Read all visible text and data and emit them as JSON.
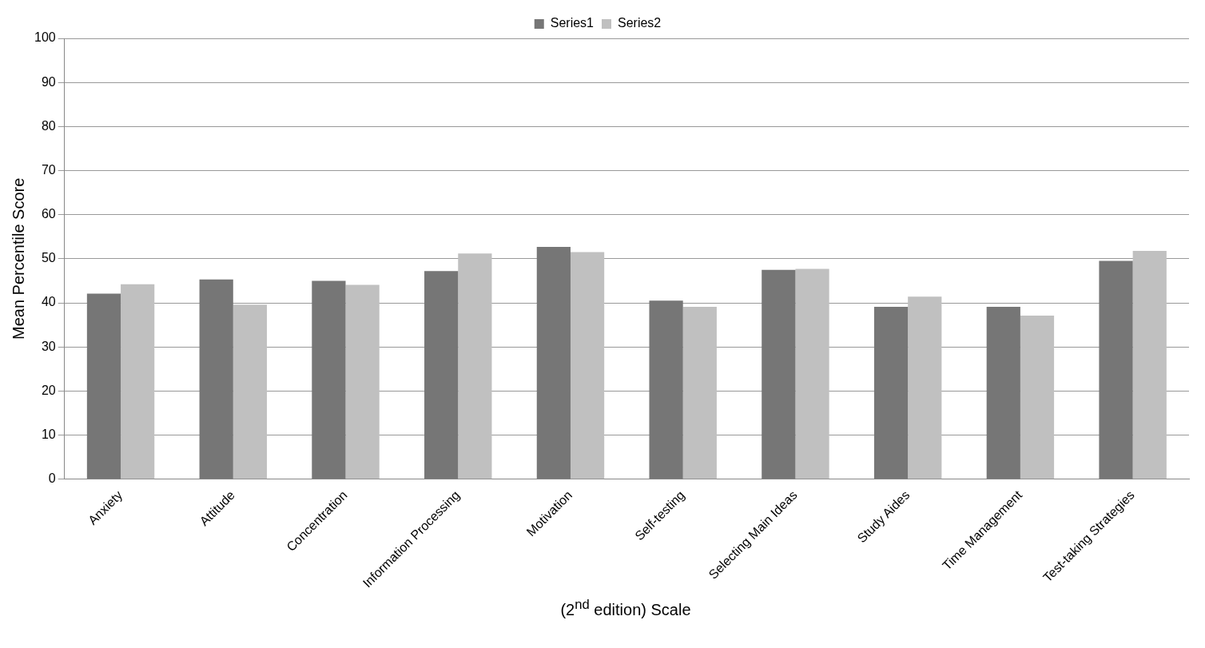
{
  "chart_data": {
    "type": "bar",
    "xlabel": "(2$^{nd}$ edition) Scale",
    "ylabel": "Mean Percentile Score",
    "categories": [
      "Anxiety",
      "Attitude",
      "Concentration",
      "Information Processing",
      "Motivation",
      "Self-testing",
      "Selecting Main Ideas",
      "Study Aides",
      "Time Management",
      "Test-taking Strategies"
    ],
    "series": [
      {
        "name": "Series1",
        "color": "#767676",
        "values": [
          42.1,
          45.3,
          45,
          47.2,
          52.7,
          40.5,
          47.5,
          39.1,
          39.1,
          49.5
        ]
      },
      {
        "name": "Series2",
        "color": "#c0c0c0",
        "values": [
          44.2,
          39.6,
          44.1,
          51.2,
          51.5,
          39.1,
          47.7,
          41.4,
          37.1,
          51.8
        ]
      }
    ],
    "ylim": [
      0,
      100
    ],
    "yticks": [
      0,
      10,
      20,
      30,
      40,
      50,
      60,
      70,
      80,
      90,
      100
    ],
    "grid": "y",
    "legend": "top"
  }
}
